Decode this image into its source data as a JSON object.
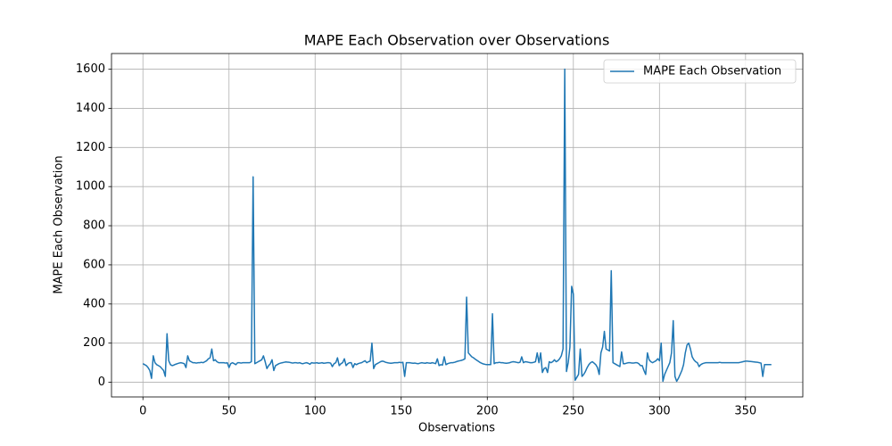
{
  "chart_data": {
    "type": "line",
    "title": "MAPE Each Observation over Observations",
    "xlabel": "Observations",
    "ylabel": "MAPE Each Observation",
    "x": [
      0,
      1,
      2,
      3,
      4,
      5,
      6,
      7,
      8,
      9,
      10,
      11,
      12,
      13,
      14,
      15,
      16,
      17,
      18,
      19,
      20,
      21,
      22,
      23,
      24,
      25,
      26,
      27,
      28,
      29,
      30,
      31,
      32,
      33,
      34,
      35,
      36,
      37,
      38,
      39,
      40,
      41,
      42,
      43,
      44,
      45,
      46,
      47,
      48,
      49,
      50,
      51,
      52,
      53,
      54,
      55,
      56,
      57,
      58,
      59,
      60,
      61,
      62,
      63,
      64,
      65,
      66,
      67,
      68,
      69,
      70,
      71,
      72,
      73,
      74,
      75,
      76,
      77,
      78,
      79,
      80,
      81,
      82,
      83,
      84,
      85,
      86,
      87,
      88,
      89,
      90,
      91,
      92,
      93,
      94,
      95,
      96,
      97,
      98,
      99,
      100,
      101,
      102,
      103,
      104,
      105,
      106,
      107,
      108,
      109,
      110,
      111,
      112,
      113,
      114,
      115,
      116,
      117,
      118,
      119,
      120,
      121,
      122,
      123,
      124,
      125,
      126,
      127,
      128,
      129,
      130,
      131,
      132,
      133,
      134,
      135,
      136,
      137,
      138,
      139,
      140,
      141,
      142,
      143,
      144,
      145,
      146,
      147,
      148,
      149,
      150,
      151,
      152,
      153,
      154,
      155,
      156,
      157,
      158,
      159,
      160,
      161,
      162,
      163,
      164,
      165,
      166,
      167,
      168,
      169,
      170,
      171,
      172,
      173,
      174,
      175,
      176,
      177,
      178,
      179,
      180,
      181,
      182,
      183,
      184,
      185,
      186,
      187,
      188,
      189,
      190,
      191,
      192,
      193,
      194,
      195,
      196,
      197,
      198,
      199,
      200,
      201,
      202,
      203,
      204,
      205,
      206,
      207,
      208,
      209,
      210,
      211,
      212,
      213,
      214,
      215,
      216,
      217,
      218,
      219,
      220,
      221,
      222,
      223,
      224,
      225,
      226,
      227,
      228,
      229,
      230,
      231,
      232,
      233,
      234,
      235,
      236,
      237,
      238,
      239,
      240,
      241,
      242,
      243,
      244,
      245,
      246,
      247,
      248,
      249,
      250,
      251,
      252,
      253,
      254,
      255,
      256,
      257,
      258,
      259,
      260,
      261,
      262,
      263,
      264,
      265,
      266,
      267,
      268,
      269,
      270,
      271,
      272,
      273,
      274,
      275,
      276,
      277,
      278,
      279,
      280,
      281,
      282,
      283,
      284,
      285,
      286,
      287,
      288,
      289,
      290,
      291,
      292,
      293,
      294,
      295,
      296,
      297,
      298,
      299,
      300,
      301,
      302,
      303,
      304,
      305,
      306,
      307,
      308,
      309,
      310,
      311,
      312,
      313,
      314,
      315,
      316,
      317,
      318,
      319,
      320,
      321,
      322,
      323,
      324,
      325,
      326,
      327,
      328,
      329,
      330,
      331,
      332,
      333,
      334,
      335,
      336,
      337,
      338,
      339,
      340,
      341,
      342,
      343,
      344,
      345,
      346,
      347,
      348,
      349,
      350,
      351,
      352,
      353,
      354,
      355,
      356,
      357,
      358,
      359,
      360,
      361,
      362,
      363,
      364,
      365
    ],
    "series": [
      {
        "name": "MAPE Each Observation",
        "color": "#1f77b4",
        "values": [
          95,
          90,
          85,
          75,
          60,
          20,
          135,
          100,
          90,
          85,
          80,
          70,
          60,
          30,
          248,
          110,
          90,
          85,
          88,
          92,
          95,
          98,
          100,
          98,
          95,
          75,
          135,
          110,
          105,
          100,
          100,
          98,
          100,
          100,
          102,
          100,
          105,
          110,
          120,
          125,
          170,
          110,
          115,
          105,
          100,
          100,
          100,
          100,
          98,
          100,
          75,
          95,
          100,
          95,
          90,
          100,
          100,
          98,
          100,
          100,
          100,
          100,
          100,
          105,
          1050,
          95,
          100,
          105,
          110,
          115,
          135,
          105,
          70,
          85,
          95,
          115,
          60,
          85,
          90,
          95,
          98,
          100,
          102,
          104,
          103,
          102,
          100,
          98,
          100,
          100,
          98,
          100,
          96,
          95,
          98,
          100,
          97,
          92,
          100,
          98,
          98,
          100,
          97,
          98,
          100,
          97,
          98,
          100,
          100,
          98,
          80,
          95,
          100,
          125,
          85,
          95,
          100,
          120,
          85,
          95,
          100,
          100,
          75,
          95,
          90,
          95,
          98,
          100,
          105,
          110,
          100,
          105,
          108,
          200,
          70,
          90,
          95,
          100,
          105,
          108,
          106,
          102,
          100,
          98,
          97,
          98,
          100,
          100,
          100,
          102,
          100,
          102,
          30,
          100,
          100,
          100,
          98,
          97,
          98,
          96,
          95,
          98,
          100,
          98,
          97,
          100,
          98,
          97,
          100,
          98,
          95,
          120,
          85,
          90,
          88,
          130,
          90,
          95,
          98,
          100,
          100,
          102,
          105,
          108,
          110,
          112,
          115,
          120,
          435,
          150,
          140,
          130,
          125,
          118,
          112,
          106,
          100,
          96,
          93,
          91,
          90,
          90,
          90,
          350,
          95,
          100,
          100,
          102,
          100,
          100,
          98,
          97,
          98,
          100,
          103,
          105,
          104,
          102,
          100,
          102,
          130,
          100,
          105,
          104,
          102,
          100,
          100,
          102,
          105,
          150,
          100,
          150,
          50,
          70,
          75,
          50,
          105,
          100,
          105,
          115,
          105,
          110,
          120,
          135,
          170,
          1600,
          55,
          100,
          180,
          490,
          450,
          10,
          25,
          40,
          170,
          30,
          40,
          55,
          75,
          90,
          100,
          105,
          98,
          90,
          75,
          40,
          150,
          180,
          260,
          170,
          165,
          160,
          570,
          100,
          95,
          90,
          85,
          80,
          155,
          95,
          95,
          98,
          100,
          100,
          98,
          98,
          100,
          100,
          95,
          85,
          85,
          60,
          40,
          150,
          115,
          105,
          100,
          105,
          110,
          120,
          110,
          200,
          5,
          40,
          60,
          80,
          100,
          150,
          315,
          30,
          5,
          20,
          40,
          60,
          90,
          150,
          190,
          200,
          170,
          130,
          115,
          105,
          100,
          80,
          90,
          95,
          98,
          100,
          100,
          100,
          100,
          100,
          100,
          100,
          100,
          102,
          100,
          100,
          100,
          100,
          100,
          100,
          100,
          100,
          100,
          100,
          100,
          102,
          104,
          106,
          108,
          108,
          107,
          106,
          105,
          104,
          103,
          102,
          100,
          98,
          30,
          90,
          90,
          90,
          90,
          90
        ]
      }
    ],
    "xlim": [
      -18.25,
      383.25
    ],
    "ylim": [
      -75,
      1680
    ],
    "xticks": [
      0,
      50,
      100,
      150,
      200,
      250,
      300,
      350
    ],
    "yticks": [
      0,
      200,
      400,
      600,
      800,
      1000,
      1200,
      1400,
      1600
    ],
    "grid": true,
    "legend": "upper right"
  }
}
